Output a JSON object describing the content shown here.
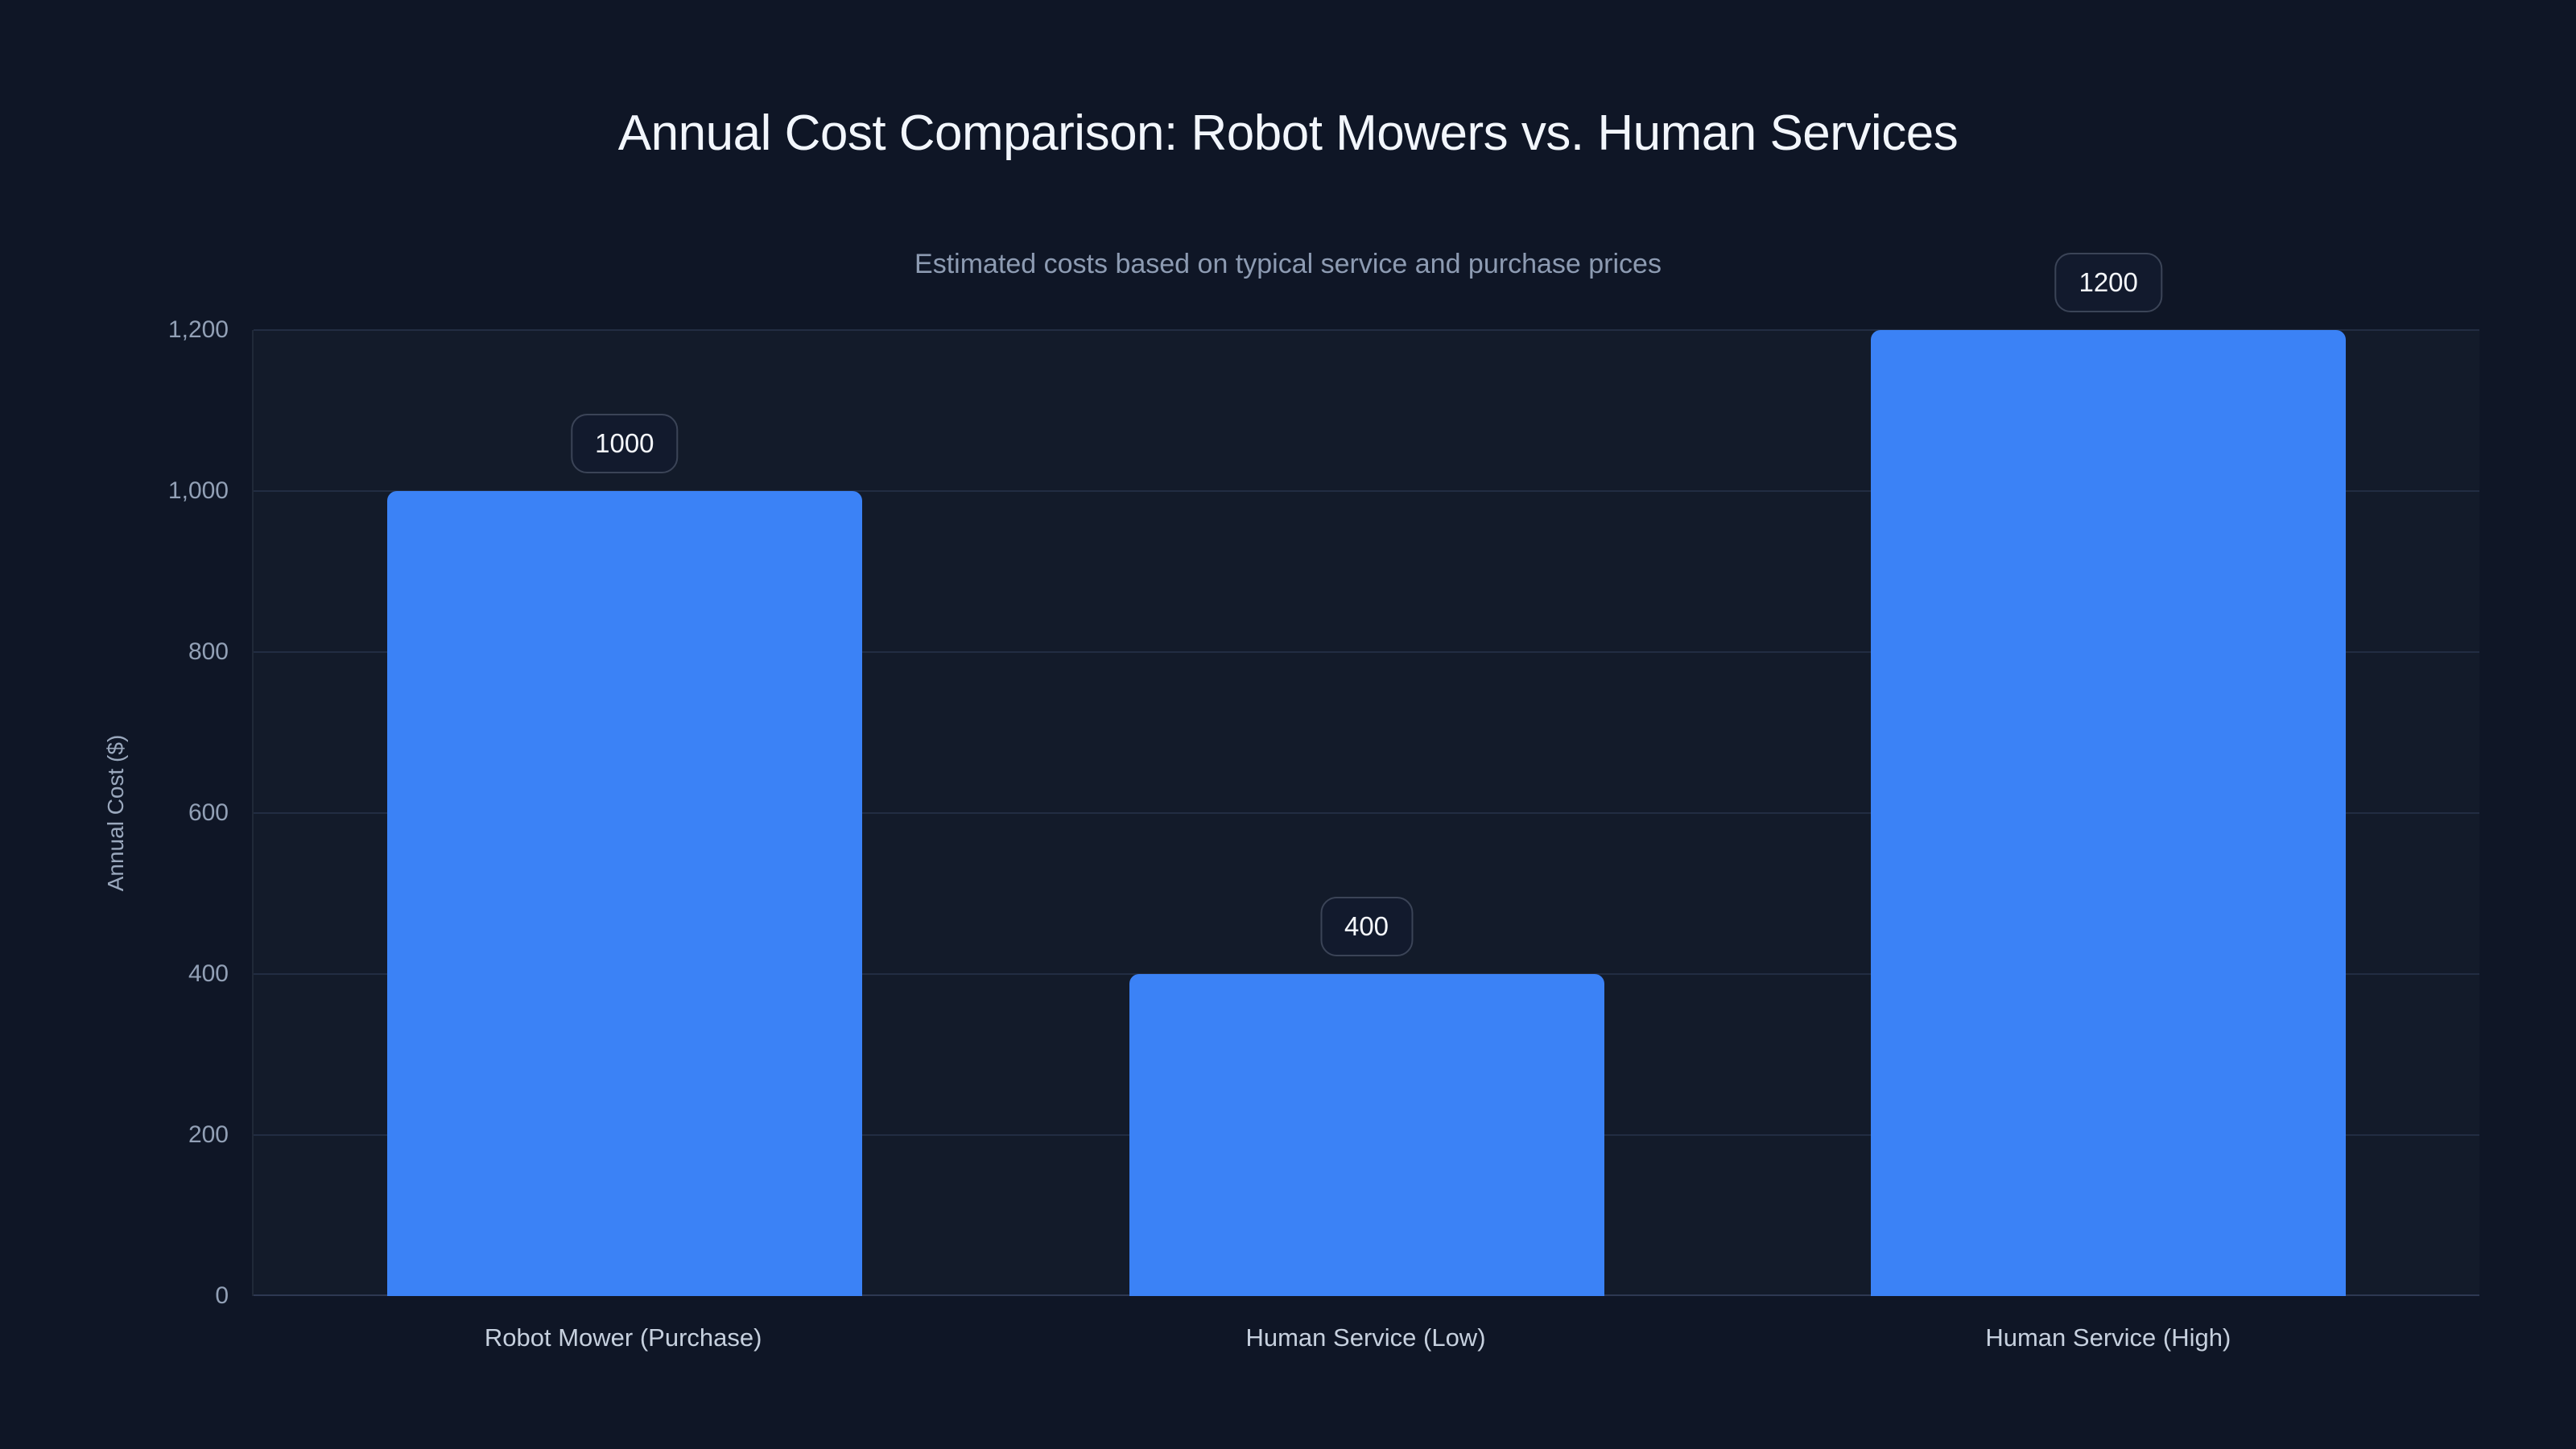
{
  "chart_data": {
    "type": "bar",
    "title": "Annual Cost Comparison: Robot Mowers vs. Human Services",
    "subtitle": "Estimated costs based on typical service and purchase prices",
    "ylabel": "Annual Cost ($)",
    "categories": [
      "Robot Mower (Purchase)",
      "Human Service (Low)",
      "Human Service (High)"
    ],
    "values": [
      1000,
      400,
      1200
    ],
    "value_labels": [
      "1000",
      "400",
      "1200"
    ],
    "ylim": [
      0,
      1200
    ],
    "yticks": [
      0,
      200,
      400,
      600,
      800,
      1000,
      1200
    ],
    "ytick_labels": [
      "0",
      "200",
      "400",
      "600",
      "800",
      "1,000",
      "1,200"
    ],
    "grid": true,
    "legend": false,
    "colors": {
      "page_bg": "#0f1626",
      "bar": "#3b82f6",
      "grid": "#222d42",
      "axis": "#2e3952",
      "title": "#f2f6fc",
      "subtitle": "#8d9bb2",
      "tick": "#92a0b6",
      "category": "#c6d0de",
      "ytitle": "#9aa8bd",
      "badge_border": "#3b4457",
      "badge_text": "#f4f7fb",
      "badge_bg": "#121a2d"
    }
  }
}
